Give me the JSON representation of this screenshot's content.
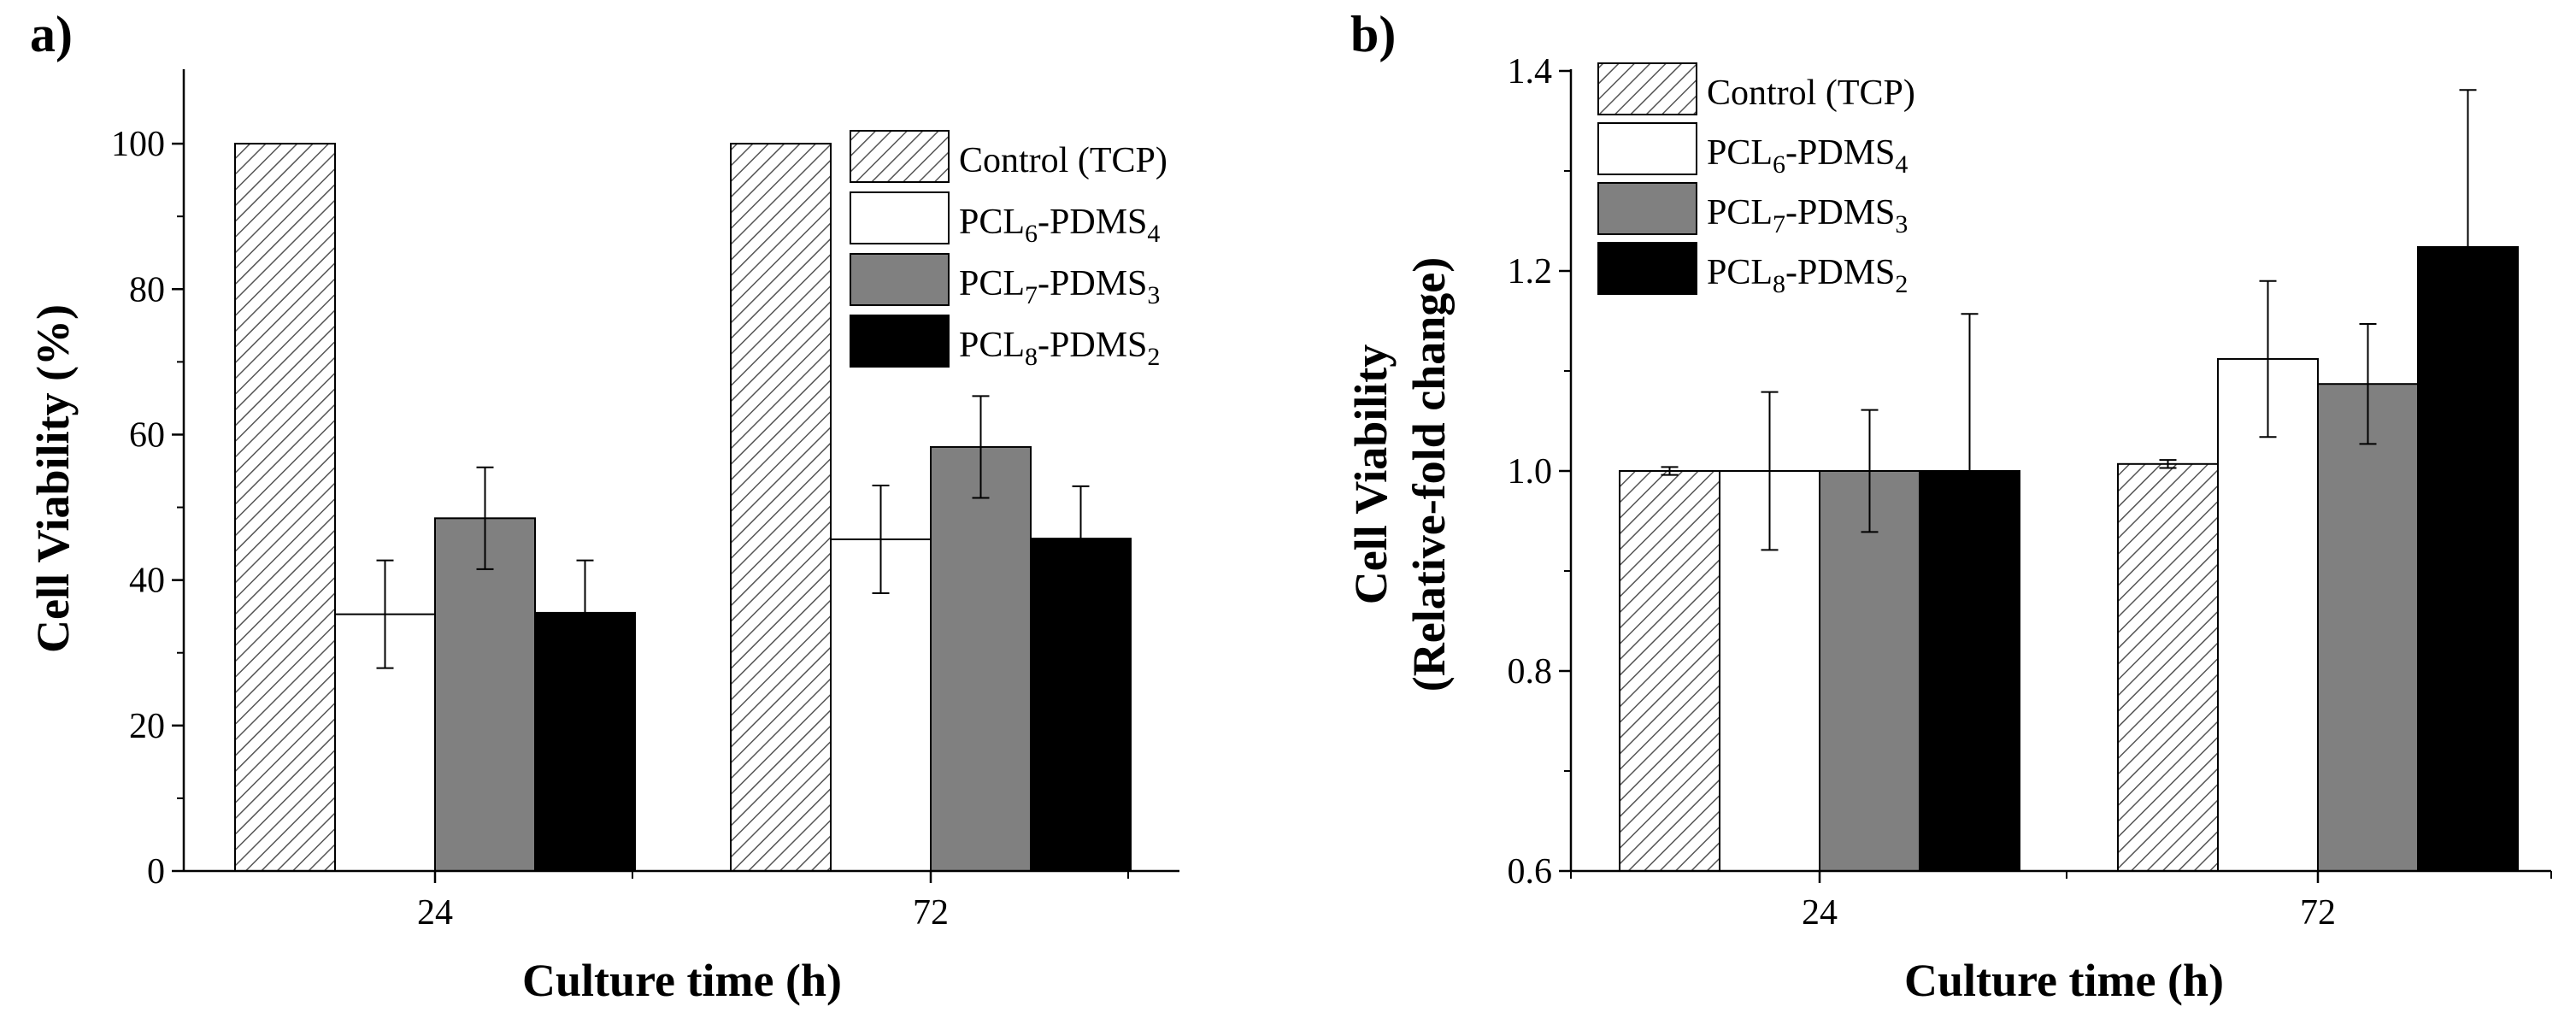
{
  "chart_data": [
    {
      "panel": "a)",
      "type": "bar",
      "title": "",
      "xlabel": "Culture time (h)",
      "ylabel": "Cell Viability (%)",
      "categories": [
        "24",
        "72"
      ],
      "ylim": [
        0,
        110
      ],
      "yticks": [
        0,
        20,
        40,
        60,
        80,
        100
      ],
      "series": [
        {
          "name": "Control (TCP)",
          "legend": {
            "base": "Control (TCP)",
            "sub1": "",
            "mid": "",
            "sub2": ""
          },
          "fill": "hatch",
          "values": [
            100,
            100
          ],
          "errors": [
            0,
            0
          ]
        },
        {
          "name": "PCL6-PDMS4",
          "legend": {
            "base": "PCL",
            "sub1": "6",
            "mid": "-PDMS",
            "sub2": "4"
          },
          "fill": "#ffffff",
          "values": [
            35.3,
            45.6
          ],
          "errors": [
            7.4,
            7.4
          ]
        },
        {
          "name": "PCL7-PDMS3",
          "legend": {
            "base": "PCL",
            "sub1": "7",
            "mid": "-PDMS",
            "sub2": "3"
          },
          "fill": "#808080",
          "values": [
            48.5,
            58.3
          ],
          "errors": [
            7.0,
            7.0
          ]
        },
        {
          "name": "PCL8-PDMS2",
          "legend": {
            "base": "PCL",
            "sub1": "8",
            "mid": "-PDMS",
            "sub2": "2"
          },
          "fill": "#000000",
          "values": [
            35.5,
            45.7
          ],
          "errors": [
            7.2,
            7.2
          ]
        }
      ],
      "legend_position": "top-right"
    },
    {
      "panel": "b)",
      "type": "bar",
      "title": "",
      "xlabel": "Culture time (h)",
      "ylabel_lines": [
        "Cell Viability",
        "(Relative-fold change)"
      ],
      "categories": [
        "24",
        "72"
      ],
      "ylim": [
        0.6,
        1.4
      ],
      "yticks": [
        "0.6",
        "0.8",
        "1.0",
        "1.2",
        "1.4"
      ],
      "series": [
        {
          "name": "Control (TCP)",
          "legend": {
            "base": "Control (TCP)",
            "sub1": "",
            "mid": "",
            "sub2": ""
          },
          "fill": "hatch",
          "values": [
            1.0,
            1.007
          ],
          "errors": [
            0.004,
            0.004
          ]
        },
        {
          "name": "PCL6-PDMS4",
          "legend": {
            "base": "PCL",
            "sub1": "6",
            "mid": "-PDMS",
            "sub2": "4"
          },
          "fill": "#ffffff",
          "values": [
            1.0,
            1.112
          ],
          "errors": [
            0.079,
            0.078
          ]
        },
        {
          "name": "PCL7-PDMS3",
          "legend": {
            "base": "PCL",
            "sub1": "7",
            "mid": "-PDMS",
            "sub2": "3"
          },
          "fill": "#808080",
          "values": [
            1.0,
            1.087
          ],
          "errors": [
            0.061,
            0.06
          ]
        },
        {
          "name": "PCL8-PDMS2",
          "legend": {
            "base": "PCL",
            "sub1": "8",
            "mid": "-PDMS",
            "sub2": "2"
          },
          "fill": "#000000",
          "values": [
            1.0,
            1.224
          ],
          "errors": [
            0.157,
            0.157
          ]
        }
      ],
      "legend_position": "top-left"
    }
  ]
}
